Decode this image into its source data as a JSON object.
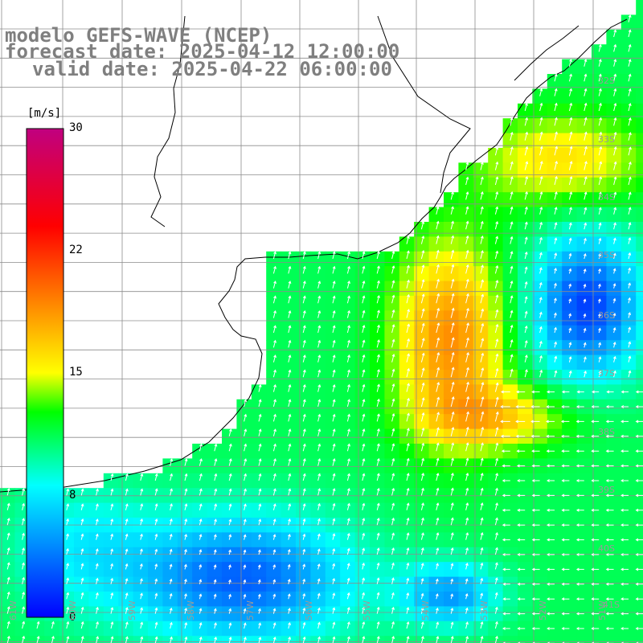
{
  "title": {
    "line1": "modelo GEFS-WAVE (NCEP)",
    "line2": "forecast date: 2025-04-12 12:00:00",
    "line3": "valid date: 2025-04-22 06:00:00"
  },
  "colorbar": {
    "unit": "[m/s]",
    "ticks": [
      "30",
      "22",
      "15",
      "8",
      "0"
    ],
    "stops": [
      "#0000ff",
      "#00ffff",
      "#00ff00",
      "#ffff00",
      "#ff0000",
      "#c00080"
    ]
  },
  "lat_labels": [
    "32S",
    "33S",
    "34S",
    "35S",
    "36S",
    "37S",
    "38S",
    "39S",
    "40S",
    "41S"
  ],
  "lon_labels": [
    "61W",
    "60W",
    "59W",
    "58W",
    "57W",
    "56W",
    "55W",
    "54W",
    "53W",
    "52W",
    "51W"
  ],
  "colors": {
    "grid": "#8c8c8c",
    "coast": "#000000",
    "arrows": "#ffffff",
    "title": "#7f7f7f"
  }
}
